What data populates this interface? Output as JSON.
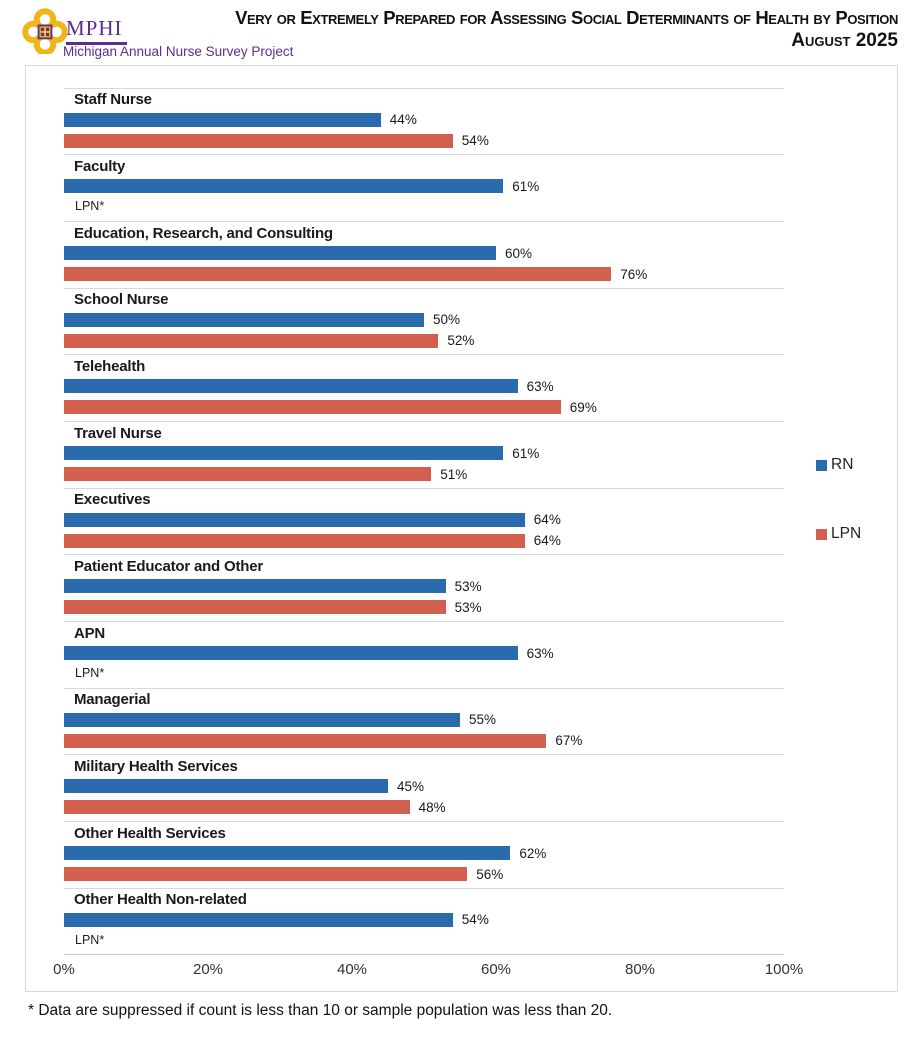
{
  "header": {
    "org": "MPHI",
    "tagline": "Michigan Annual Nurse Survey Project",
    "title_line1": "Very or Extremely Prepared for Assessing Social Determinants of Health by Position",
    "title_line2": "August 2025"
  },
  "colors": {
    "rn_blue": "#2A6BAD",
    "lpn_red": "#D35F4E",
    "brand_purple": "#5C2D91",
    "brand_gold": "#EFB51A",
    "separator_gray": "#D9D9D9"
  },
  "chart_data": {
    "type": "bar",
    "orientation": "horizontal",
    "title": "Very or Extremely Prepared for Assessing Social Determinants of Health by Position",
    "subtitle": "August 2025",
    "xlim": [
      0,
      100
    ],
    "x_ticks": [
      "0%",
      "20%",
      "40%",
      "60%",
      "80%",
      "100%"
    ],
    "value_suffix": "%",
    "grid": "category-separators-only",
    "legend_position": "right",
    "legend": [
      {
        "name": "RN",
        "color": "#2A6BAD"
      },
      {
        "name": "LPN",
        "color": "#D35F4E"
      }
    ],
    "suppressed_text": "LPN*",
    "categories": [
      "Staff Nurse",
      "Faculty",
      "Education, Research, and Consulting",
      "School Nurse",
      "Telehealth",
      "Travel Nurse",
      "Executives",
      "Patient Educator and Other",
      "APN",
      "Managerial",
      "Military Health Services",
      "Other Health Services",
      "Other Health Non-related"
    ],
    "series": [
      {
        "name": "RN",
        "color": "#2A6BAD",
        "values": [
          44,
          61,
          60,
          50,
          63,
          61,
          64,
          53,
          63,
          55,
          45,
          62,
          54
        ]
      },
      {
        "name": "LPN",
        "color": "#D35F4E",
        "values": [
          54,
          null,
          76,
          52,
          69,
          51,
          64,
          53,
          null,
          67,
          48,
          56,
          null
        ]
      }
    ]
  },
  "footnote": "* Data are suppressed if count is less than 10 or sample population was less than 20."
}
